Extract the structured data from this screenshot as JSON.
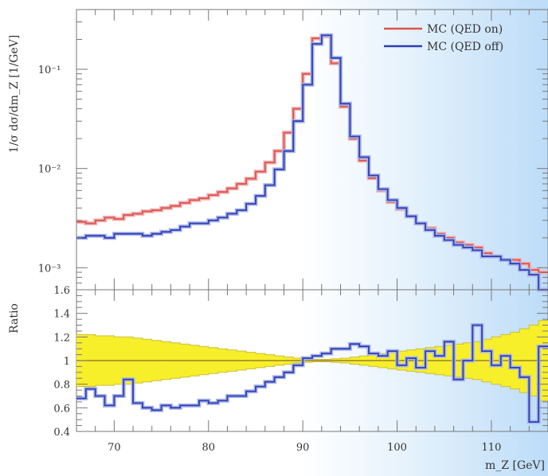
{
  "chart_data": {
    "type": "line",
    "xlabel": "m_Z [GeV]",
    "ylabel_top": "1/σ dσ/dm_Z [1/GeV]",
    "ylabel_bottom": "Ratio",
    "x_ticks": [
      "70",
      "80",
      "90",
      "100",
      "110"
    ],
    "xlim": [
      66,
      116
    ],
    "main": {
      "scale": "log",
      "ylim": [
        0.0006,
        0.4
      ],
      "y_ticks": [
        "10⁻³",
        "10⁻²",
        "10⁻¹"
      ],
      "bin_edges": [
        66,
        67,
        68,
        69,
        70,
        71,
        72,
        73,
        74,
        75,
        76,
        77,
        78,
        79,
        80,
        81,
        82,
        83,
        84,
        85,
        86,
        87,
        88,
        89,
        90,
        91,
        92,
        93,
        94,
        95,
        96,
        97,
        98,
        99,
        100,
        101,
        102,
        103,
        104,
        105,
        106,
        107,
        108,
        109,
        110,
        111,
        112,
        113,
        114,
        115,
        116
      ],
      "series": [
        {
          "name": "MC (QED on)",
          "color": "#d9534f",
          "values": [
            0.0029,
            0.0028,
            0.003,
            0.0032,
            0.0031,
            0.0034,
            0.0035,
            0.0037,
            0.0038,
            0.004,
            0.0042,
            0.0045,
            0.0048,
            0.005,
            0.0054,
            0.0058,
            0.0063,
            0.007,
            0.0079,
            0.0093,
            0.0115,
            0.015,
            0.023,
            0.04,
            0.09,
            0.205,
            0.215,
            0.115,
            0.042,
            0.02,
            0.012,
            0.008,
            0.006,
            0.0046,
            0.0039,
            0.0033,
            0.0028,
            0.0025,
            0.0022,
            0.002,
            0.0018,
            0.0017,
            0.0016,
            0.0014,
            0.0013,
            0.0012,
            0.0012,
            0.0011,
            0.00095,
            0.0009
          ]
        },
        {
          "name": "MC (QED off)",
          "color": "#2e3fb0",
          "values": [
            0.002,
            0.0021,
            0.0021,
            0.002,
            0.0022,
            0.0022,
            0.0022,
            0.0021,
            0.0022,
            0.0023,
            0.0024,
            0.0026,
            0.0028,
            0.0028,
            0.003,
            0.0032,
            0.0035,
            0.0038,
            0.0044,
            0.0053,
            0.0068,
            0.0098,
            0.015,
            0.03,
            0.07,
            0.18,
            0.22,
            0.13,
            0.045,
            0.021,
            0.013,
            0.0085,
            0.0062,
            0.0048,
            0.004,
            0.0033,
            0.0028,
            0.0024,
            0.0021,
            0.0019,
            0.0017,
            0.0016,
            0.0015,
            0.0013,
            0.0013,
            0.0012,
            0.0011,
            0.00095,
            0.00085,
            0.0006
          ]
        }
      ]
    },
    "ratio": {
      "ylim": [
        0.4,
        1.6
      ],
      "y_ticks": [
        "0.4",
        "0.6",
        "0.8",
        "1",
        "1.2",
        "1.4",
        "1.6"
      ],
      "reference": 1.0,
      "band_halfwidth": [
        0.22,
        0.22,
        0.21,
        0.21,
        0.2,
        0.2,
        0.19,
        0.18,
        0.17,
        0.16,
        0.15,
        0.14,
        0.13,
        0.12,
        0.11,
        0.1,
        0.09,
        0.08,
        0.07,
        0.06,
        0.05,
        0.04,
        0.03,
        0.02,
        0.015,
        0.01,
        0.01,
        0.015,
        0.02,
        0.03,
        0.04,
        0.05,
        0.06,
        0.07,
        0.08,
        0.09,
        0.1,
        0.11,
        0.12,
        0.13,
        0.14,
        0.15,
        0.16,
        0.18,
        0.2,
        0.22,
        0.24,
        0.27,
        0.3,
        0.34
      ],
      "values": [
        0.68,
        0.76,
        0.7,
        0.62,
        0.7,
        0.84,
        0.64,
        0.6,
        0.58,
        0.62,
        0.6,
        0.62,
        0.62,
        0.66,
        0.64,
        0.66,
        0.7,
        0.7,
        0.74,
        0.78,
        0.82,
        0.86,
        0.9,
        0.96,
        1.02,
        1.04,
        1.06,
        1.1,
        1.1,
        1.14,
        1.12,
        1.06,
        1.04,
        1.08,
        0.96,
        1.02,
        0.94,
        1.08,
        1.04,
        1.16,
        0.84,
        1.0,
        1.3,
        1.08,
        0.96,
        1.04,
        0.94,
        0.86,
        0.48,
        1.12
      ]
    },
    "legend_position": "top-right"
  }
}
